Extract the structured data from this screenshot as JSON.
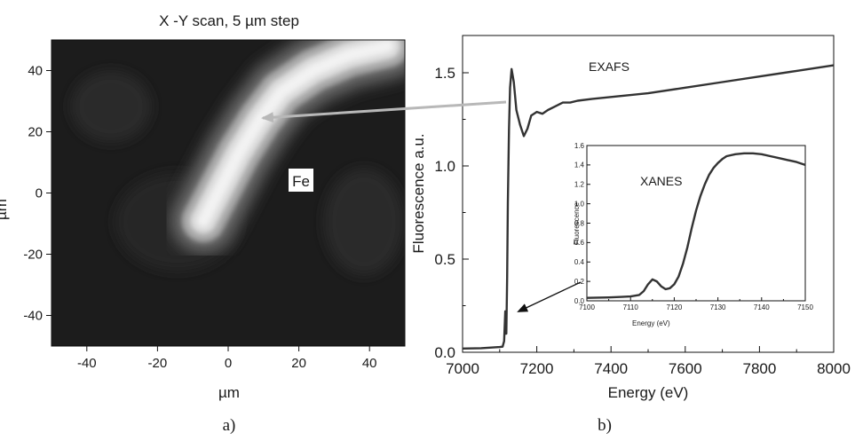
{
  "panel_a": {
    "letter": "a)",
    "title": "X -Y scan, 5 µm step",
    "xlabel": "µm",
    "ylabel": "µm",
    "element_label": "Fe",
    "bg_color": "#1c1c1c",
    "hot_color": "#f2f2f2"
  },
  "panel_b": {
    "letter": "b)",
    "exafs_label": "EXAFS",
    "xanes_label": "XANES",
    "colors": {
      "line": "#333333",
      "arrow_gray": "#b8b8b8",
      "arrow_black": "#111111"
    }
  },
  "chart_data": [
    {
      "type": "heatmap",
      "title": "X -Y scan, 5 µm step",
      "xlabel": "µm",
      "ylabel": "µm",
      "xlim": [
        -50,
        50
      ],
      "ylim": [
        -50,
        50
      ],
      "xticks": [
        -40,
        -20,
        0,
        20,
        40
      ],
      "yticks": [
        -40,
        -20,
        0,
        20,
        40
      ],
      "annotation": "Fe",
      "description_of_hotspot": "curved band of high Fe fluorescence",
      "ridge": [
        [
          -7,
          -9
        ],
        [
          -2,
          2
        ],
        [
          3,
          13
        ],
        [
          9,
          24
        ],
        [
          15,
          33
        ],
        [
          24,
          40
        ],
        [
          34,
          45
        ],
        [
          45,
          48
        ]
      ]
    },
    {
      "type": "line",
      "xlabel": "Energy (eV)",
      "ylabel": "Fluorescence a.u.",
      "xlim": [
        7000,
        8000
      ],
      "ylim": [
        0,
        1.7
      ],
      "xticks": [
        7000,
        7200,
        7400,
        7600,
        7800,
        8000
      ],
      "yticks": [
        0.0,
        0.5,
        1.0,
        1.5
      ],
      "annotations": [
        "EXAFS"
      ],
      "x": [
        7000,
        7050,
        7100,
        7108,
        7112,
        7115,
        7116,
        7118,
        7120,
        7122,
        7125,
        7128,
        7132,
        7138,
        7145,
        7155,
        7165,
        7175,
        7185,
        7200,
        7215,
        7230,
        7250,
        7270,
        7290,
        7310,
        7350,
        7400,
        7500,
        7600,
        7700,
        7800,
        7900,
        8000
      ],
      "y": [
        0.02,
        0.022,
        0.028,
        0.03,
        0.06,
        0.22,
        0.1,
        0.1,
        0.4,
        0.8,
        1.2,
        1.42,
        1.52,
        1.45,
        1.3,
        1.22,
        1.16,
        1.2,
        1.27,
        1.29,
        1.28,
        1.3,
        1.32,
        1.34,
        1.34,
        1.35,
        1.36,
        1.37,
        1.39,
        1.42,
        1.45,
        1.48,
        1.51,
        1.54
      ]
    },
    {
      "type": "line",
      "title": "XANES",
      "xlabel": "Energy (eV)",
      "ylabel": "Fluorescence",
      "xlim": [
        7100,
        7150
      ],
      "ylim": [
        0,
        1.6
      ],
      "xticks": [
        7100,
        7110,
        7120,
        7130,
        7140,
        7150
      ],
      "yticks": [
        0.0,
        0.2,
        0.4,
        0.6,
        0.8,
        1.0,
        1.2,
        1.4,
        1.6
      ],
      "x": [
        7100,
        7105,
        7108,
        7110,
        7112,
        7113,
        7114,
        7115,
        7116,
        7117,
        7118,
        7119,
        7120,
        7121,
        7122,
        7123,
        7124,
        7125,
        7126,
        7127,
        7128,
        7129,
        7130,
        7131,
        7132,
        7134,
        7136,
        7138,
        7140,
        7142,
        7144,
        7146,
        7148,
        7150
      ],
      "y": [
        0.03,
        0.035,
        0.04,
        0.045,
        0.06,
        0.1,
        0.17,
        0.22,
        0.2,
        0.15,
        0.12,
        0.13,
        0.17,
        0.25,
        0.38,
        0.55,
        0.75,
        0.93,
        1.08,
        1.2,
        1.3,
        1.37,
        1.42,
        1.46,
        1.49,
        1.51,
        1.52,
        1.52,
        1.51,
        1.49,
        1.47,
        1.45,
        1.43,
        1.4
      ]
    }
  ]
}
